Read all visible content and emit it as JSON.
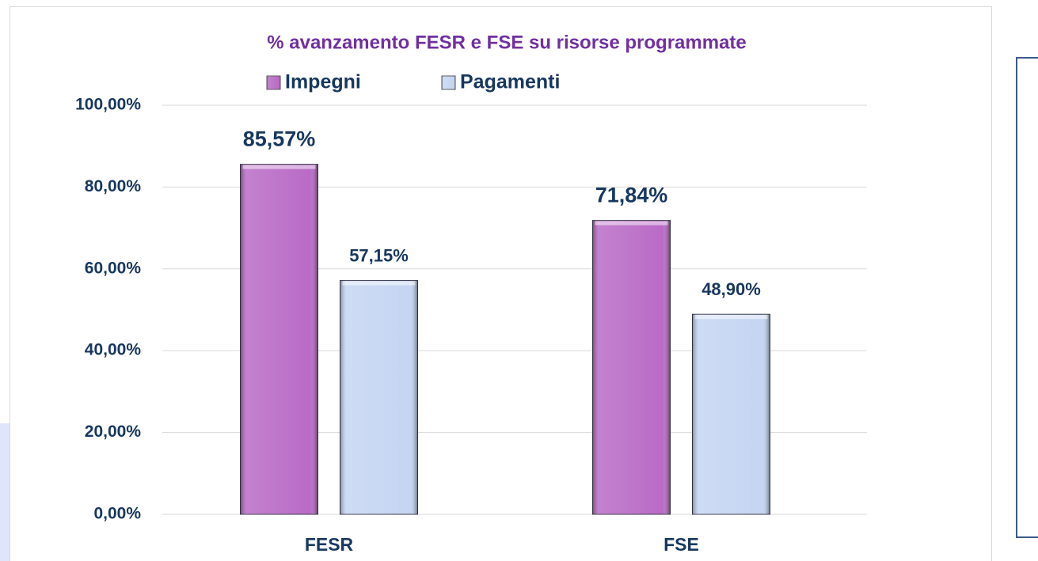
{
  "chart_data": {
    "type": "bar",
    "title": "% avanzamento FESR e FSE su risorse programmate",
    "categories": [
      "FESR",
      "FSE"
    ],
    "series": [
      {
        "name": "Impegni",
        "color": "#b96bc6",
        "values": [
          85.57,
          71.84
        ],
        "value_labels": [
          "85,57%",
          "71,84%"
        ]
      },
      {
        "name": "Pagamenti",
        "color": "#c5d5f2",
        "values": [
          57.15,
          48.9
        ],
        "value_labels": [
          "57,15%",
          "48,90%"
        ]
      }
    ],
    "ylim": [
      0,
      100
    ],
    "yticks": [
      {
        "value": 0,
        "label": "0,00%"
      },
      {
        "value": 20,
        "label": "20,00%"
      },
      {
        "value": 40,
        "label": "40,00%"
      },
      {
        "value": 60,
        "label": "60,00%"
      },
      {
        "value": 80,
        "label": "80,00%"
      },
      {
        "value": 100,
        "label": "100,00%"
      }
    ],
    "grid": true,
    "legend": "top"
  }
}
